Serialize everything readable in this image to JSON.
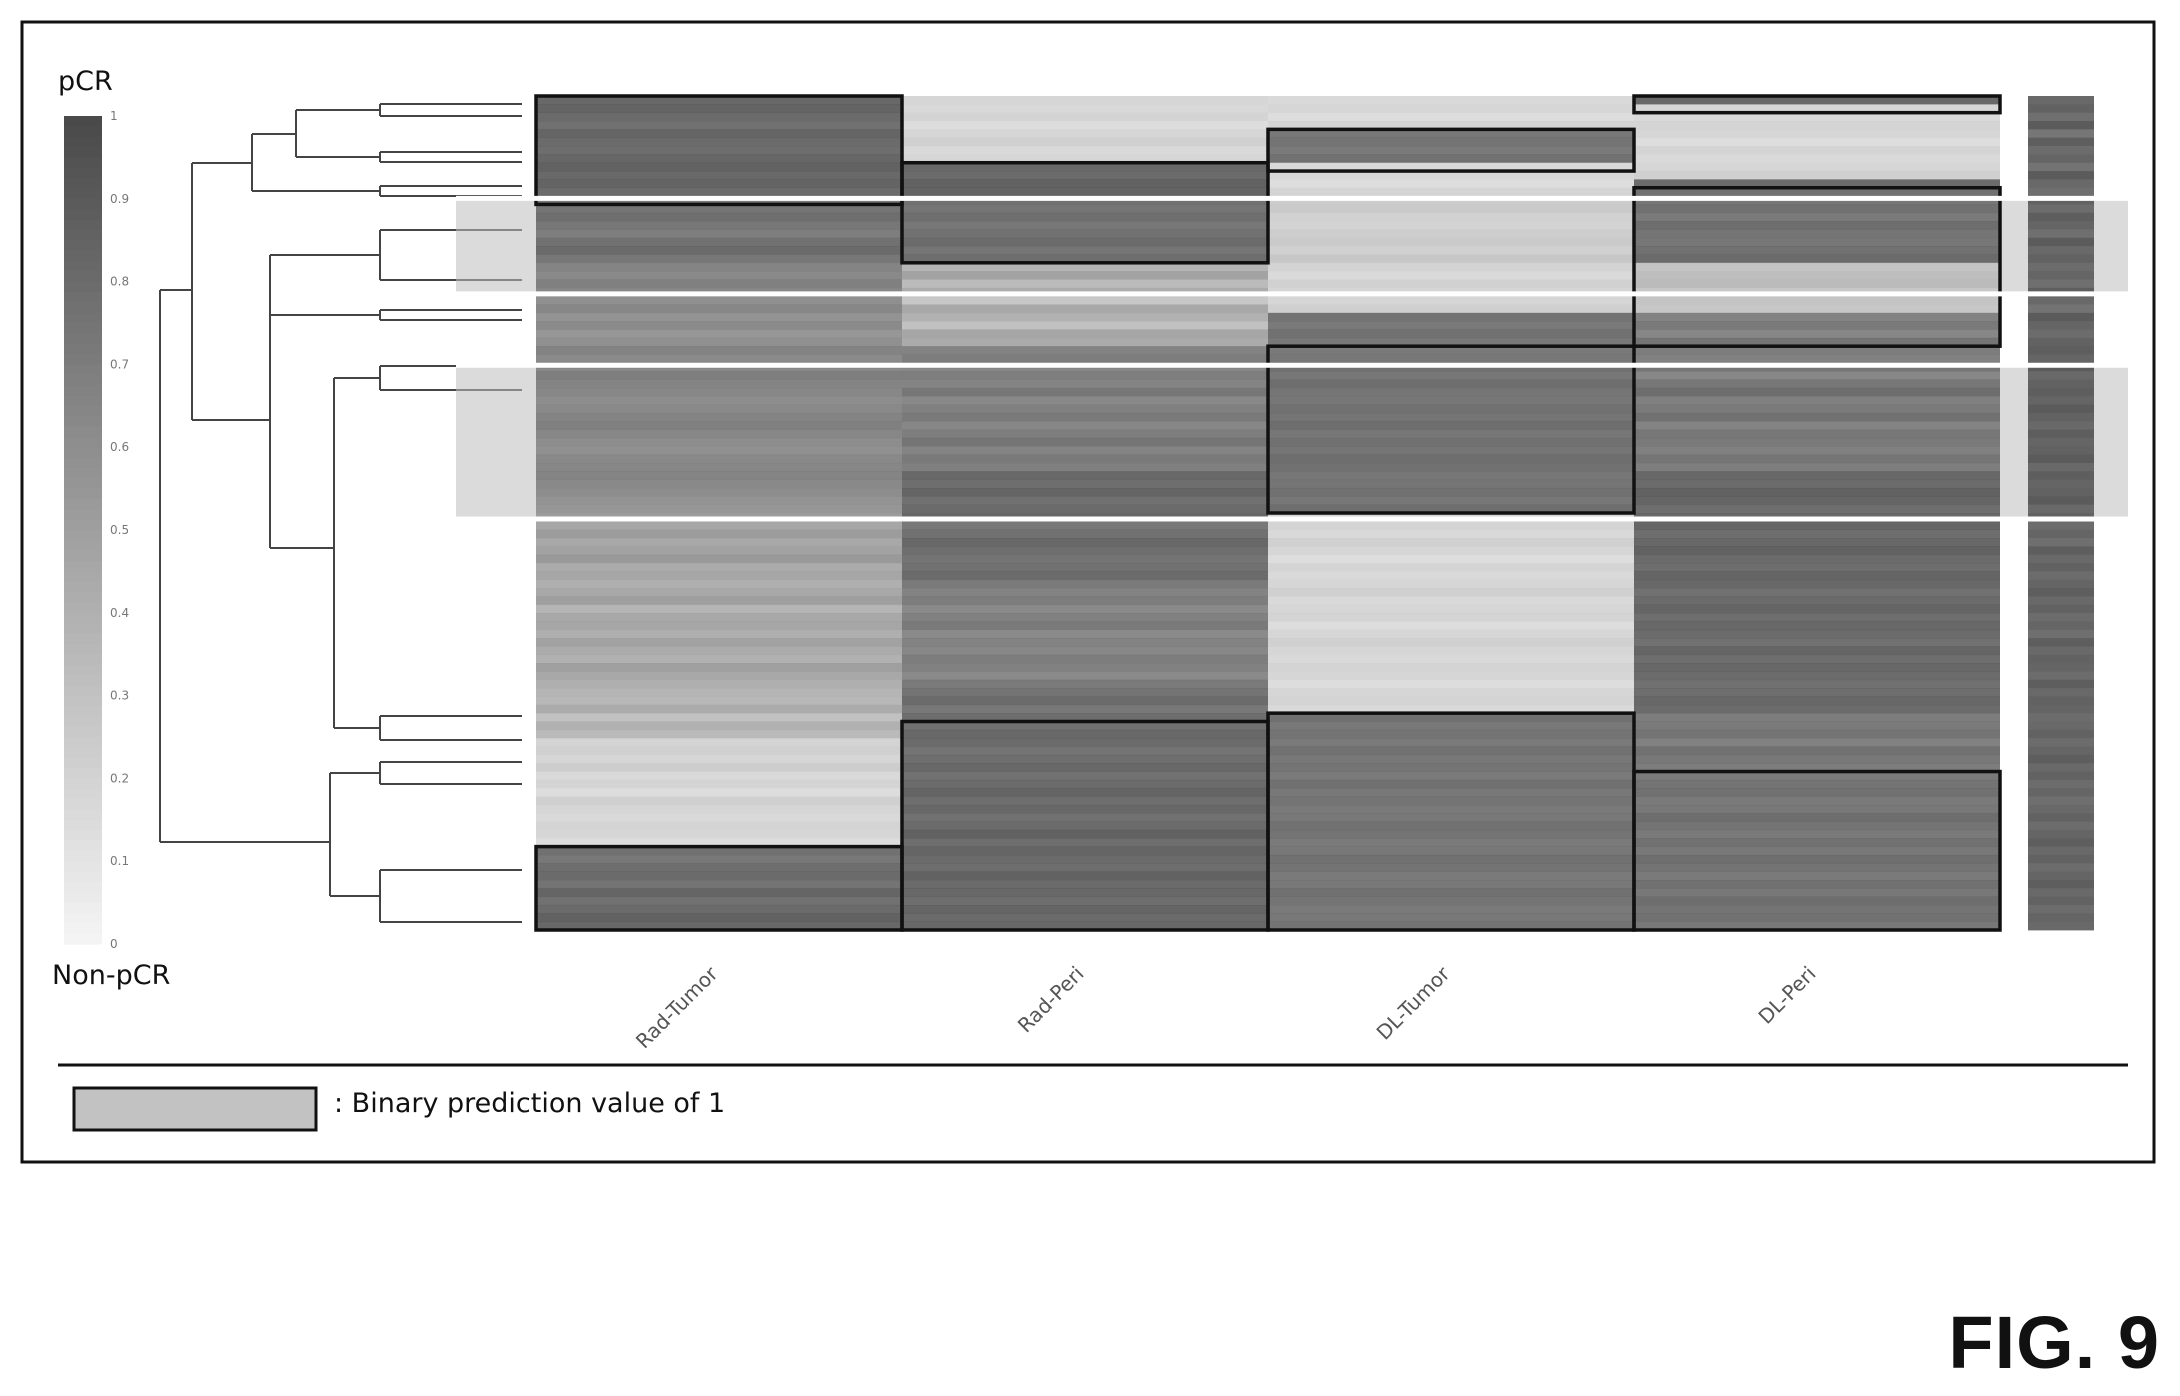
{
  "figure_label": "FIG. 9",
  "colors": {
    "frame": "#111111",
    "cell_min": "#f4f4f4",
    "cell_max": "#4a4a4a",
    "highlight": "#bdbdbd"
  },
  "chart_data": {
    "type": "heatmap",
    "title": "",
    "xlabel": "",
    "ylabel": "",
    "columns": [
      "Rad-Tumor",
      "Rad-Peri",
      "DL-Tumor",
      "DL-Peri"
    ],
    "colorbar": {
      "top_label": "pCR",
      "bottom_label": "Non-pCR",
      "ticks": [
        "0",
        "0.1",
        "0.2",
        "0.3",
        "0.4",
        "0.5",
        "0.6",
        "0.7",
        "0.8",
        "0.9",
        "1"
      ],
      "range": [
        0,
        1
      ]
    },
    "row_count": 100,
    "values_by_column": [
      [
        0.92,
        0.95,
        0.9,
        0.86,
        0.94,
        0.9,
        0.88,
        0.93,
        0.96,
        0.91,
        0.95,
        0.9,
        0.78,
        0.82,
        0.86,
        0.8,
        0.76,
        0.84,
        0.88,
        0.8,
        0.72,
        0.68,
        0.74,
        0.7,
        0.66,
        0.72,
        0.64,
        0.7,
        0.62,
        0.66,
        0.74,
        0.7,
        0.68,
        0.76,
        0.72,
        0.7,
        0.66,
        0.68,
        0.72,
        0.74,
        0.7,
        0.66,
        0.64,
        0.68,
        0.7,
        0.72,
        0.68,
        0.66,
        0.62,
        0.6,
        0.56,
        0.52,
        0.58,
        0.5,
        0.54,
        0.6,
        0.48,
        0.52,
        0.46,
        0.5,
        0.56,
        0.42,
        0.5,
        0.52,
        0.46,
        0.54,
        0.48,
        0.44,
        0.56,
        0.5,
        0.46,
        0.42,
        0.4,
        0.48,
        0.34,
        0.44,
        0.38,
        0.22,
        0.24,
        0.2,
        0.26,
        0.18,
        0.22,
        0.16,
        0.24,
        0.2,
        0.18,
        0.22,
        0.2,
        0.16,
        0.86,
        0.82,
        0.88,
        0.9,
        0.84,
        0.94,
        0.86,
        0.9,
        0.96,
        0.92
      ],
      [
        0.2,
        0.18,
        0.22,
        0.16,
        0.2,
        0.24,
        0.18,
        0.2,
        0.92,
        0.9,
        0.96,
        0.94,
        0.84,
        0.82,
        0.86,
        0.8,
        0.84,
        0.88,
        0.82,
        0.86,
        0.4,
        0.52,
        0.36,
        0.46,
        0.3,
        0.5,
        0.44,
        0.34,
        0.52,
        0.48,
        0.74,
        0.78,
        0.7,
        0.76,
        0.72,
        0.8,
        0.68,
        0.74,
        0.78,
        0.7,
        0.76,
        0.82,
        0.72,
        0.78,
        0.74,
        0.9,
        0.86,
        0.92,
        0.84,
        0.88,
        0.9,
        0.82,
        0.86,
        0.92,
        0.88,
        0.84,
        0.86,
        0.9,
        0.8,
        0.74,
        0.78,
        0.7,
        0.76,
        0.8,
        0.7,
        0.74,
        0.72,
        0.78,
        0.76,
        0.7,
        0.8,
        0.84,
        0.9,
        0.82,
        0.88,
        0.86,
        0.92,
        0.9,
        0.84,
        0.88,
        0.92,
        0.86,
        0.9,
        0.94,
        0.88,
        0.92,
        0.86,
        0.9,
        0.96,
        0.88,
        0.94,
        0.9,
        0.88,
        0.96,
        0.9,
        0.92,
        0.88,
        0.94,
        0.9,
        0.92
      ],
      [
        0.18,
        0.2,
        0.16,
        0.22,
        0.82,
        0.84,
        0.8,
        0.86,
        0.18,
        0.2,
        0.16,
        0.22,
        0.24,
        0.26,
        0.22,
        0.2,
        0.24,
        0.26,
        0.22,
        0.28,
        0.2,
        0.16,
        0.22,
        0.18,
        0.2,
        0.24,
        0.84,
        0.8,
        0.86,
        0.82,
        0.8,
        0.82,
        0.84,
        0.8,
        0.86,
        0.82,
        0.8,
        0.84,
        0.82,
        0.86,
        0.8,
        0.84,
        0.82,
        0.86,
        0.84,
        0.8,
        0.82,
        0.84,
        0.8,
        0.86,
        0.2,
        0.22,
        0.18,
        0.24,
        0.2,
        0.16,
        0.22,
        0.18,
        0.2,
        0.24,
        0.18,
        0.2,
        0.22,
        0.16,
        0.2,
        0.24,
        0.2,
        0.18,
        0.22,
        0.2,
        0.16,
        0.2,
        0.22,
        0.18,
        0.86,
        0.82,
        0.84,
        0.8,
        0.86,
        0.82,
        0.84,
        0.8,
        0.86,
        0.82,
        0.84,
        0.8,
        0.82,
        0.86,
        0.84,
        0.8,
        0.82,
        0.86,
        0.84,
        0.8,
        0.82,
        0.86,
        0.84,
        0.8,
        0.82,
        0.84
      ],
      [
        0.92,
        0.2,
        0.18,
        0.22,
        0.2,
        0.16,
        0.22,
        0.18,
        0.2,
        0.24,
        0.9,
        0.86,
        0.8,
        0.84,
        0.78,
        0.86,
        0.82,
        0.8,
        0.84,
        0.88,
        0.3,
        0.34,
        0.36,
        0.28,
        0.32,
        0.3,
        0.74,
        0.8,
        0.72,
        0.84,
        0.78,
        0.76,
        0.82,
        0.7,
        0.8,
        0.86,
        0.74,
        0.78,
        0.84,
        0.72,
        0.8,
        0.78,
        0.74,
        0.82,
        0.76,
        0.9,
        0.88,
        0.94,
        0.92,
        0.86,
        0.9,
        0.94,
        0.88,
        0.92,
        0.96,
        0.9,
        0.88,
        0.94,
        0.92,
        0.86,
        0.9,
        0.94,
        0.88,
        0.92,
        0.9,
        0.86,
        0.94,
        0.88,
        0.92,
        0.9,
        0.86,
        0.88,
        0.92,
        0.9,
        0.78,
        0.8,
        0.84,
        0.76,
        0.86,
        0.82,
        0.78,
        0.8,
        0.84,
        0.86,
        0.8,
        0.82,
        0.88,
        0.84,
        0.8,
        0.86,
        0.82,
        0.88,
        0.84,
        0.8,
        0.86,
        0.82,
        0.88,
        0.84,
        0.86,
        0.82
      ]
    ],
    "summary_column": [
      0.82,
      0.86,
      0.78,
      0.9,
      0.74,
      0.88,
      0.8,
      0.84,
      0.76,
      0.9,
      0.82,
      0.78,
      0.86,
      0.8,
      0.88,
      0.84,
      0.78,
      0.9,
      0.82,
      0.86,
      0.8,
      0.84,
      0.78,
      0.88,
      0.82,
      0.76,
      0.9,
      0.84,
      0.8,
      0.86,
      0.88,
      0.84,
      0.9,
      0.82,
      0.86,
      0.88,
      0.84,
      0.9,
      0.86,
      0.82,
      0.88,
      0.84,
      0.86,
      0.9,
      0.82,
      0.88,
      0.84,
      0.86,
      0.9,
      0.82,
      0.86,
      0.8,
      0.84,
      0.78,
      0.88,
      0.82,
      0.86,
      0.8,
      0.84,
      0.88,
      0.82,
      0.86,
      0.8,
      0.84,
      0.78,
      0.88,
      0.82,
      0.86,
      0.84,
      0.8,
      0.88,
      0.82,
      0.86,
      0.84,
      0.8,
      0.82,
      0.86,
      0.8,
      0.84,
      0.88,
      0.82,
      0.86,
      0.8,
      0.84,
      0.78,
      0.82,
      0.86,
      0.8,
      0.84,
      0.88,
      0.82,
      0.86,
      0.8,
      0.84,
      0.88,
      0.82,
      0.86,
      0.8,
      0.84,
      0.82
    ],
    "prediction_boxes": [
      {
        "column": "Rad-Tumor",
        "rows": [
          0,
          12
        ]
      },
      {
        "column": "Rad-Tumor",
        "rows": [
          90,
          99
        ]
      },
      {
        "column": "Rad-Peri",
        "rows": [
          8,
          19
        ]
      },
      {
        "column": "Rad-Peri",
        "rows": [
          75,
          99
        ]
      },
      {
        "column": "DL-Tumor",
        "rows": [
          4,
          8
        ]
      },
      {
        "column": "DL-Tumor",
        "rows": [
          30,
          49
        ]
      },
      {
        "column": "DL-Tumor",
        "rows": [
          74,
          99
        ]
      },
      {
        "column": "DL-Peri",
        "rows": [
          0,
          1
        ]
      },
      {
        "column": "DL-Peri",
        "rows": [
          11,
          29
        ]
      },
      {
        "column": "DL-Peri",
        "rows": [
          81,
          99
        ]
      }
    ],
    "highlighted_row_bands": [
      [
        13,
        22
      ],
      [
        33,
        49
      ]
    ],
    "legend": {
      "swatch": "prediction-box",
      "text": ": Binary prediction value of 1"
    }
  }
}
